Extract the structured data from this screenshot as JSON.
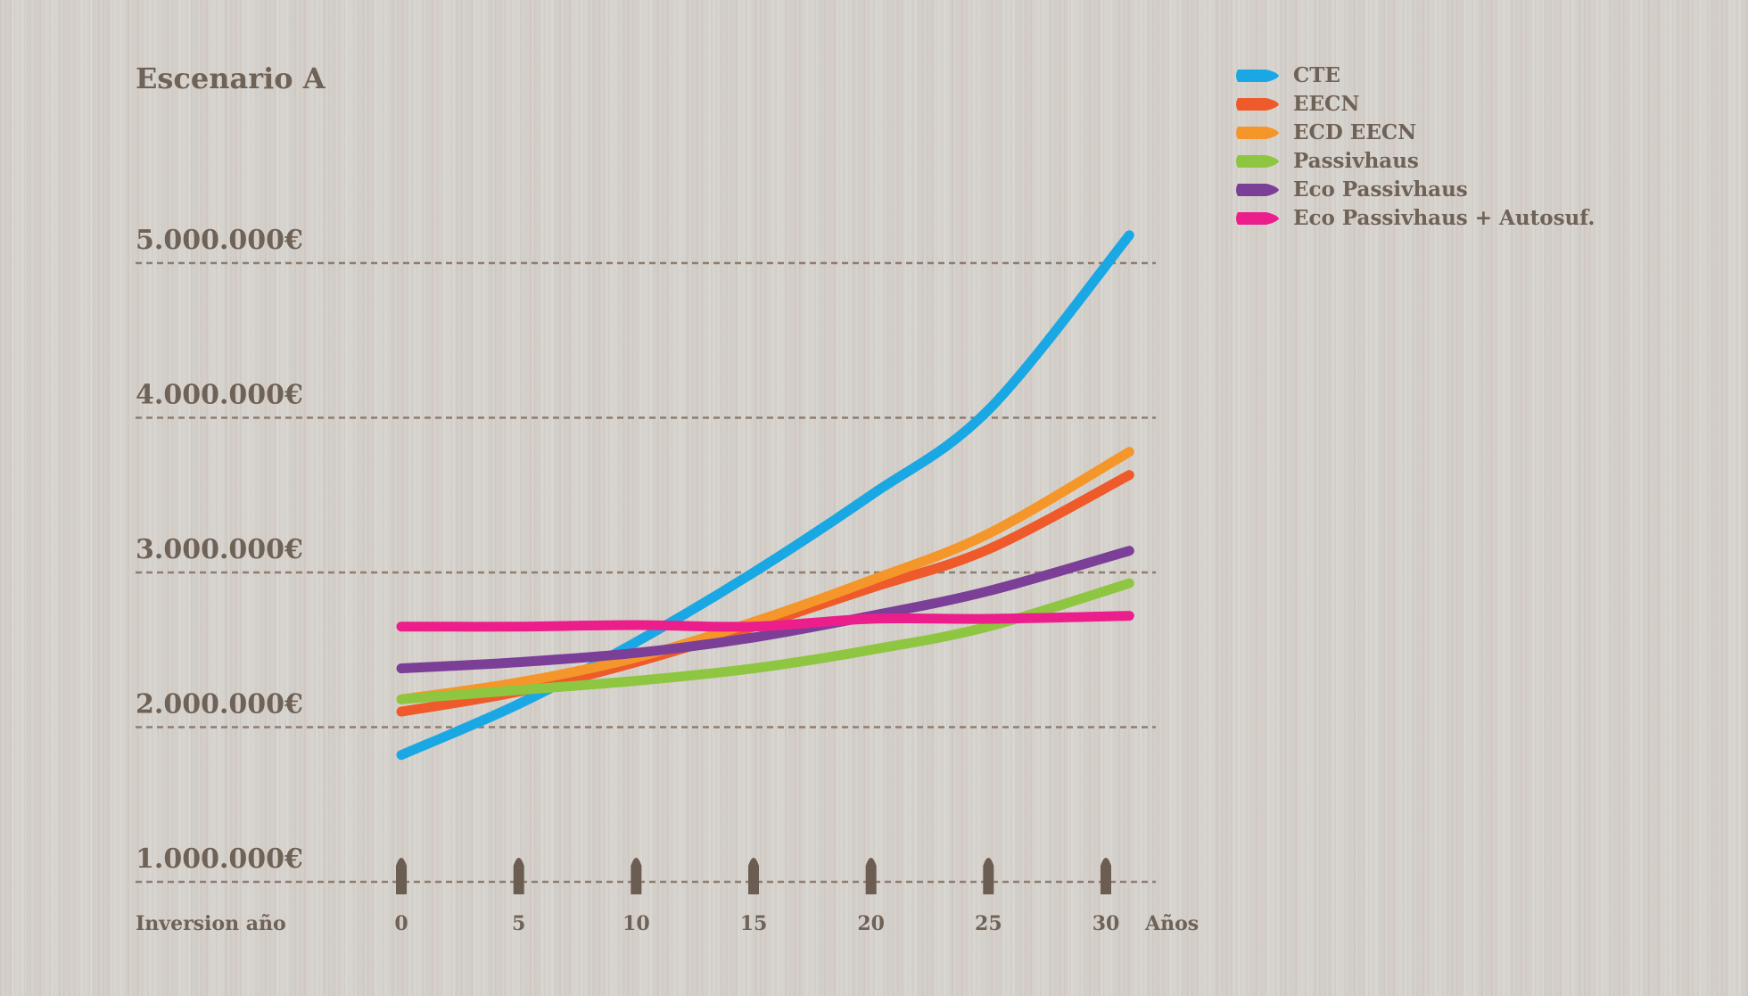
{
  "chart_data": {
    "type": "line",
    "title": "Escenario A",
    "xlabel": "Años",
    "x_prefix_label": "Inversion año",
    "ylabel": "",
    "x": [
      0,
      5,
      10,
      15,
      20,
      25,
      31
    ],
    "x_ticks": [
      0,
      5,
      10,
      15,
      20,
      25,
      30
    ],
    "x_tick_labels": [
      "0",
      "5",
      "10",
      "15",
      "20",
      "25",
      "30"
    ],
    "xlim": [
      0,
      31
    ],
    "ylim": [
      1000000,
      5000000
    ],
    "y_ticks": [
      1000000,
      2000000,
      3000000,
      4000000,
      5000000
    ],
    "y_tick_labels": [
      "1.000.000€",
      "2.000.000€",
      "3.000.000€",
      "4.000.000€",
      "5.000.000€"
    ],
    "grid": true,
    "legend_position": "top-right",
    "series": [
      {
        "name": "CTE",
        "color": "#1aa8e4",
        "values": [
          1820000,
          2150000,
          2550000,
          3000000,
          3500000,
          4050000,
          5180000
        ]
      },
      {
        "name": "EECN",
        "color": "#ee5a2a",
        "values": [
          2100000,
          2230000,
          2420000,
          2650000,
          2900000,
          3150000,
          3630000
        ]
      },
      {
        "name": "ECD EECN",
        "color": "#f5962a",
        "values": [
          2180000,
          2290000,
          2450000,
          2680000,
          2950000,
          3250000,
          3780000
        ]
      },
      {
        "name": "Passivhaus",
        "color": "#8ec641",
        "values": [
          2180000,
          2240000,
          2300000,
          2380000,
          2500000,
          2650000,
          2930000
        ]
      },
      {
        "name": "Eco Passivhaus",
        "color": "#7b3f98",
        "values": [
          2380000,
          2420000,
          2480000,
          2580000,
          2720000,
          2880000,
          3140000
        ]
      },
      {
        "name": "Eco Passivhaus + Autosuf.",
        "color": "#ec1e8c",
        "values": [
          2650000,
          2650000,
          2660000,
          2650000,
          2700000,
          2700000,
          2720000
        ]
      }
    ]
  }
}
